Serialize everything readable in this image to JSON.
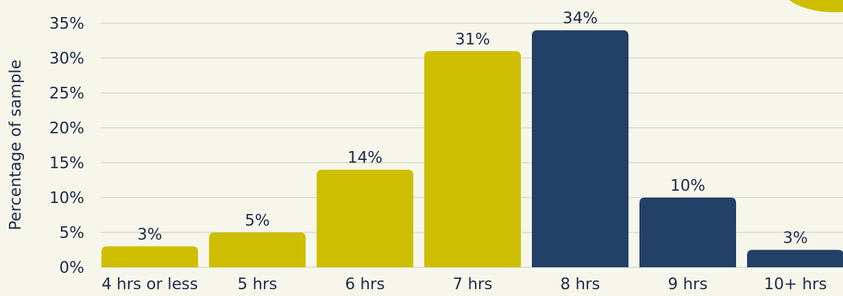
{
  "chart_data": {
    "type": "bar",
    "categories": [
      "4 hrs or less",
      "5 hrs",
      "6 hrs",
      "7 hrs",
      "8 hrs",
      "9 hrs",
      "10+ hrs"
    ],
    "values": [
      3,
      5,
      14,
      31,
      34,
      10,
      2.5
    ],
    "data_labels": [
      "3%",
      "5%",
      "14%",
      "31%",
      "34%",
      "10%",
      "3%"
    ],
    "bar_colors": [
      "#cdbf00",
      "#cdbf00",
      "#cdbf00",
      "#cdbf00",
      "#234066",
      "#234066",
      "#234066"
    ],
    "ylabel": "Percentage of sample",
    "ylim": [
      0,
      35
    ],
    "yticks": [
      {
        "value": 0,
        "label": "0%"
      },
      {
        "value": 5,
        "label": "5%"
      },
      {
        "value": 10,
        "label": "10%"
      },
      {
        "value": 15,
        "label": "15%"
      },
      {
        "value": 20,
        "label": "20%"
      },
      {
        "value": 25,
        "label": "25%"
      },
      {
        "value": 30,
        "label": "30%"
      },
      {
        "value": 35,
        "label": "35%"
      }
    ],
    "grid": true,
    "grid_color": "#c9c9c3",
    "text_color": "#1c2b4a",
    "accent_decoration_color": "#cdbf00"
  }
}
